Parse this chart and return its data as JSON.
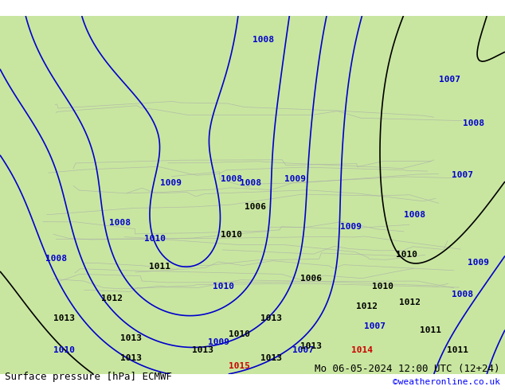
{
  "title_left": "Surface pressure [hPa] ECMWF",
  "title_right": "Mo 06-05-2024 12:00 UTC (12+24)",
  "credit": "©weatheronline.co.uk",
  "background_color": "#ffffff",
  "land_color": "#c8e6a0",
  "sea_color": "#e8e8e8",
  "border_color": "#aaaaaa",
  "isobar_blue_color": "#0000cc",
  "isobar_black_color": "#000000",
  "isobar_red_color": "#cc0000",
  "label_fontsize": 8,
  "footer_fontsize": 9,
  "fig_width": 6.34,
  "fig_height": 4.9,
  "dpi": 100
}
